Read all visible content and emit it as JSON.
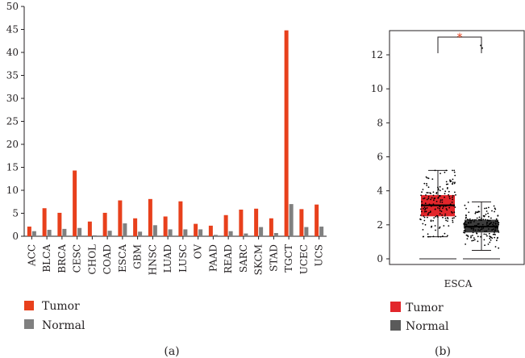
{
  "colors": {
    "tumor": "#e8401c",
    "normal": "#808080",
    "box_tumor": "#e2262b",
    "box_normal": "#3c3c3c",
    "sig": "#e8401c",
    "axis": "#231f20"
  },
  "chart_data": [
    {
      "type": "bar",
      "panel_label": "(a)",
      "ylim": [
        0,
        50
      ],
      "yticks": [
        "0",
        "5",
        "10",
        "15",
        "20",
        "25",
        "30",
        "35",
        "40",
        "45",
        "50"
      ],
      "categories": [
        "ACC",
        "BLCA",
        "BRCA",
        "CESC",
        "CHOL",
        "COAD",
        "ESCA",
        "GBM",
        "HNSC",
        "LUAD",
        "LUSC",
        "OV",
        "PAAD",
        "READ",
        "SARC",
        "SKCM",
        "STAD",
        "TGCT",
        "UCEC",
        "UCS"
      ],
      "series": [
        {
          "name": "Tumor",
          "values": [
            2.1,
            6.1,
            5.1,
            14.3,
            3.2,
            5.1,
            7.8,
            3.9,
            8.1,
            4.3,
            7.6,
            2.7,
            2.3,
            4.6,
            5.8,
            6.0,
            3.9,
            44.8,
            5.9,
            6.9
          ]
        },
        {
          "name": "Normal",
          "values": [
            1.1,
            1.4,
            1.6,
            1.8,
            0.2,
            1.2,
            2.8,
            1.0,
            2.4,
            1.5,
            1.5,
            1.5,
            0.3,
            1.1,
            0.6,
            2.0,
            0.7,
            7.0,
            2.0,
            2.1
          ]
        }
      ],
      "legend": [
        "Tumor",
        "Normal"
      ]
    },
    {
      "type": "box",
      "panel_label": "(b)",
      "category": "ESCA",
      "ylim": [
        0,
        13
      ],
      "yticks": [
        "0",
        "2",
        "4",
        "6",
        "8",
        "10",
        "12"
      ],
      "significance": "*",
      "series": [
        {
          "name": "Tumor",
          "min": 1.3,
          "q1": 2.5,
          "median": 3.15,
          "q3": 3.75,
          "max": 5.2,
          "outliers": []
        },
        {
          "name": "Normal",
          "min": 0.5,
          "q1": 1.55,
          "median": 1.9,
          "q3": 2.3,
          "max": 3.35,
          "outliers": [
            12.4,
            12.55
          ]
        }
      ],
      "legend": [
        "Tumor",
        "Normal"
      ]
    }
  ]
}
